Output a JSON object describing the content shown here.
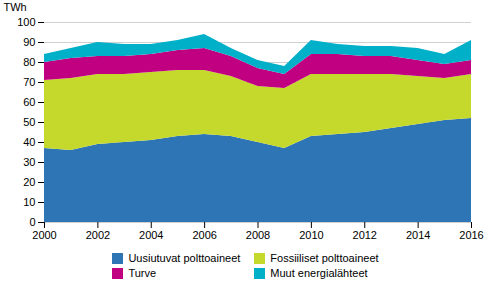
{
  "chart_data": {
    "type": "area",
    "stacked": true,
    "x": [
      2000,
      2001,
      2002,
      2003,
      2004,
      2005,
      2006,
      2007,
      2008,
      2009,
      2010,
      2011,
      2012,
      2013,
      2014,
      2015,
      2016
    ],
    "series": [
      {
        "name": "Uusiutuvat polttoaineet",
        "color": "#2E75B6",
        "values": [
          37,
          36,
          39,
          40,
          41,
          43,
          44,
          43,
          40,
          37,
          43,
          44,
          45,
          47,
          49,
          51,
          52
        ]
      },
      {
        "name": "Fossiiliset polttoaineet",
        "color": "#C5D92D",
        "values": [
          34,
          36,
          35,
          34,
          34,
          33,
          32,
          30,
          28,
          30,
          31,
          30,
          29,
          27,
          24,
          21,
          22
        ]
      },
      {
        "name": "Turve",
        "color": "#C00080",
        "values": [
          9,
          10,
          9,
          9,
          9,
          10,
          11,
          10,
          9,
          7,
          10,
          10,
          9,
          9,
          8,
          7,
          7
        ]
      },
      {
        "name": "Muut energialähteet",
        "color": "#00B0C8",
        "values": [
          4,
          5,
          7,
          6,
          5,
          5,
          7,
          4,
          4,
          4,
          7,
          5,
          5,
          5,
          6,
          5,
          10
        ]
      }
    ],
    "ylabel": "TWh",
    "xlim": [
      2000,
      2016
    ],
    "xticks": [
      2000,
      2002,
      2004,
      2006,
      2008,
      2010,
      2012,
      2014,
      2016
    ],
    "ylim": [
      0,
      100
    ],
    "yticks": [
      0,
      10,
      20,
      30,
      40,
      50,
      60,
      70,
      80,
      90,
      100
    ],
    "grid": "y",
    "legend": "bottom"
  }
}
